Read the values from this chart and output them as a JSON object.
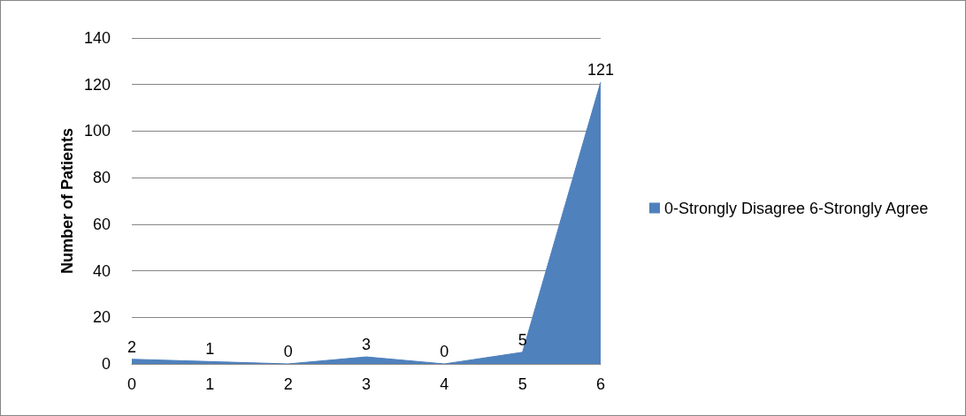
{
  "chart_data": {
    "type": "area",
    "ylabel": "Number of Patients",
    "categories": [
      "0",
      "1",
      "2",
      "3",
      "4",
      "5",
      "6"
    ],
    "series": [
      {
        "name": "0-Strongly Disagree 6-Strongly Agree",
        "color": "#4f81bd",
        "values": [
          2,
          1,
          0,
          3,
          0,
          5,
          121
        ]
      }
    ],
    "ylim": [
      0,
      140
    ],
    "yticks": [
      0,
      20,
      40,
      60,
      80,
      100,
      120,
      140
    ],
    "grid": "y",
    "legend": "right",
    "data_labels": true,
    "marker": "none"
  }
}
